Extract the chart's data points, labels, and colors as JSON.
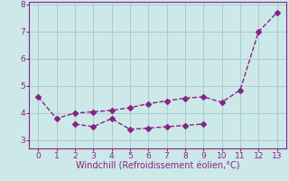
{
  "line1_x": [
    0,
    1,
    2,
    3,
    4,
    5,
    6,
    7,
    8,
    9,
    10,
    11,
    12,
    13
  ],
  "line1_y": [
    4.6,
    3.8,
    4.0,
    4.05,
    4.1,
    4.2,
    4.35,
    4.45,
    4.55,
    4.6,
    4.4,
    4.85,
    7.0,
    7.7
  ],
  "line2_x": [
    2,
    3,
    4,
    5,
    6,
    7,
    8,
    9
  ],
  "line2_y": [
    3.6,
    3.5,
    3.8,
    3.4,
    3.45,
    3.5,
    3.55,
    3.6
  ],
  "color": "#882288",
  "bg_color": "#cce8e8",
  "grid_color": "#aacccc",
  "xlabel": "Windchill (Refroidissement éolien,°C)",
  "xlim": [
    -0.5,
    13.5
  ],
  "ylim": [
    2.7,
    8.1
  ],
  "yticks": [
    3,
    4,
    5,
    6,
    7,
    8
  ],
  "xticks": [
    0,
    1,
    2,
    3,
    4,
    5,
    6,
    7,
    8,
    9,
    10,
    11,
    12,
    13
  ],
  "tick_color": "#882288",
  "font_color": "#882288",
  "font_size": 6.5,
  "xlabel_fontsize": 7.0,
  "linewidth": 1.0,
  "markersize": 3.0
}
